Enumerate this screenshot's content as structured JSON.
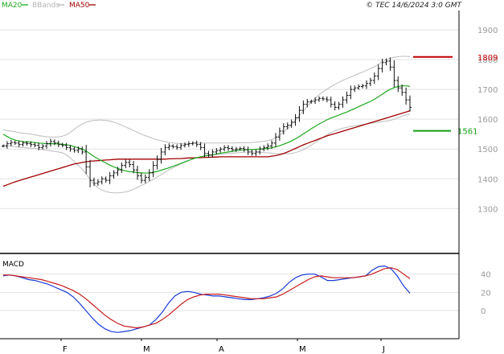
{
  "header": {
    "legend": [
      {
        "label": "MA20",
        "color": "#1fa81f"
      },
      {
        "label": "BBands",
        "color": "#b4b4b4"
      },
      {
        "label": "MA50",
        "color": "#a00000"
      }
    ],
    "copyright": "© TEC 14/6/2024 3:0 GMT"
  },
  "chart_data": [
    {
      "type": "ohlc",
      "title": "",
      "ylim": [
        1155,
        1965
      ],
      "y_ticks": [
        "1900",
        "1800",
        "1700",
        "1600",
        "1500",
        "1400",
        "1300"
      ],
      "x_month_labels": [
        "F",
        "M",
        "A",
        "M",
        "J"
      ],
      "levels": [
        {
          "label": "1809",
          "value": 1809,
          "color": "#c00000"
        },
        {
          "label": "1561",
          "value": 1561,
          "color": "#12a012"
        }
      ],
      "grid": true,
      "series": [
        {
          "name": "MA20",
          "color": "#1fa81f"
        },
        {
          "name": "BBands",
          "color": "#b4b4b4"
        },
        {
          "name": "MA50",
          "color": "#a00000"
        }
      ],
      "price_close": [
        1510,
        1518,
        1522,
        1520,
        1515,
        1520,
        1518,
        1515,
        1512,
        1505,
        1510,
        1518,
        1525,
        1520,
        1515,
        1512,
        1505,
        1500,
        1495,
        1500,
        1490,
        1440,
        1395,
        1385,
        1390,
        1400,
        1395,
        1410,
        1420,
        1430,
        1445,
        1455,
        1448,
        1430,
        1410,
        1395,
        1405,
        1420,
        1445,
        1465,
        1490,
        1505,
        1510,
        1508,
        1505,
        1512,
        1515,
        1518,
        1520,
        1515,
        1505,
        1485,
        1480,
        1490,
        1495,
        1500,
        1505,
        1502,
        1498,
        1500,
        1502,
        1498,
        1490,
        1485,
        1490,
        1500,
        1505,
        1510,
        1520,
        1540,
        1560,
        1575,
        1580,
        1590,
        1605,
        1630,
        1650,
        1658,
        1660,
        1665,
        1670,
        1668,
        1665,
        1650,
        1640,
        1650,
        1665,
        1680,
        1700,
        1705,
        1710,
        1712,
        1720,
        1730,
        1745,
        1770,
        1790,
        1795,
        1775,
        1730,
        1705,
        1690,
        1665,
        1640
      ],
      "ma20": [
        1550,
        1542,
        1535,
        1530,
        1527,
        1525,
        1524,
        1523,
        1522,
        1520,
        1519,
        1518,
        1518,
        1518,
        1517,
        1516,
        1514,
        1512,
        1508,
        1504,
        1500,
        1493,
        1484,
        1475,
        1467,
        1460,
        1453,
        1446,
        1440,
        1435,
        1430,
        1426,
        1424,
        1423,
        1421,
        1420,
        1419,
        1420,
        1422,
        1425,
        1429,
        1433,
        1437,
        1442,
        1447,
        1452,
        1457,
        1462,
        1467,
        1471,
        1474,
        1477,
        1479,
        1481,
        1483,
        1486,
        1488,
        1490,
        1492,
        1494,
        1496,
        1497,
        1498,
        1498,
        1499,
        1500,
        1501,
        1502,
        1504,
        1507,
        1511,
        1516,
        1521,
        1527,
        1534,
        1542,
        1551,
        1559,
        1568,
        1576,
        1584,
        1591,
        1598,
        1604,
        1609,
        1614,
        1619,
        1624,
        1630,
        1636,
        1642,
        1648,
        1654,
        1660,
        1667,
        1675,
        1684,
        1693,
        1700,
        1706,
        1710,
        1712,
        1712,
        1710
      ],
      "bb_upper": [
        1565,
        1562,
        1560,
        1558,
        1555,
        1553,
        1552,
        1550,
        1548,
        1545,
        1543,
        1541,
        1540,
        1540,
        1541,
        1543,
        1548,
        1556,
        1566,
        1576,
        1584,
        1590,
        1594,
        1596,
        1597,
        1597,
        1596,
        1594,
        1590,
        1585,
        1580,
        1574,
        1568,
        1562,
        1556,
        1550,
        1545,
        1540,
        1535,
        1531,
        1528,
        1525,
        1522,
        1520,
        1519,
        1518,
        1518,
        1518,
        1519,
        1520,
        1520,
        1520,
        1520,
        1520,
        1520,
        1520,
        1520,
        1520,
        1520,
        1520,
        1521,
        1521,
        1521,
        1522,
        1523,
        1524,
        1526,
        1528,
        1532,
        1538,
        1546,
        1556,
        1568,
        1582,
        1597,
        1612,
        1628,
        1643,
        1657,
        1670,
        1682,
        1692,
        1701,
        1709,
        1717,
        1724,
        1730,
        1736,
        1742,
        1747,
        1753,
        1758,
        1764,
        1770,
        1776,
        1784,
        1793,
        1800,
        1805,
        1808,
        1810,
        1811,
        1811,
        1810
      ],
      "bb_lower": [
        1515,
        1512,
        1510,
        1508,
        1506,
        1505,
        1504,
        1503,
        1502,
        1500,
        1498,
        1496,
        1494,
        1492,
        1490,
        1487,
        1480,
        1470,
        1458,
        1445,
        1432,
        1416,
        1398,
        1382,
        1370,
        1362,
        1357,
        1354,
        1353,
        1353,
        1354,
        1356,
        1360,
        1365,
        1371,
        1378,
        1384,
        1391,
        1398,
        1406,
        1414,
        1422,
        1430,
        1437,
        1444,
        1450,
        1456,
        1462,
        1467,
        1471,
        1474,
        1476,
        1478,
        1480,
        1482,
        1483,
        1484,
        1485,
        1486,
        1487,
        1488,
        1489,
        1490,
        1490,
        1490,
        1489,
        1488,
        1487,
        1486,
        1485,
        1484,
        1484,
        1484,
        1485,
        1488,
        1492,
        1498,
        1505,
        1513,
        1522,
        1531,
        1540,
        1548,
        1555,
        1561,
        1566,
        1570,
        1573,
        1576,
        1578,
        1580,
        1582,
        1584,
        1586,
        1588,
        1590,
        1592,
        1594,
        1596,
        1600,
        1605,
        1610,
        1614,
        1617
      ],
      "ma50": [
        1375,
        1380,
        1385,
        1390,
        1394,
        1398,
        1402,
        1406,
        1410,
        1414,
        1418,
        1422,
        1426,
        1430,
        1434,
        1438,
        1442,
        1446,
        1450,
        1452,
        1455,
        1457,
        1459,
        1460,
        1461,
        1462,
        1463,
        1464,
        1465,
        1466,
        1466,
        1466,
        1466,
        1466,
        1466,
        1466,
        1466,
        1466,
        1466,
        1466,
        1466,
        1466,
        1467,
        1467,
        1468,
        1468,
        1469,
        1470,
        1470,
        1471,
        1471,
        1472,
        1472,
        1473,
        1473,
        1474,
        1474,
        1474,
        1474,
        1474,
        1474,
        1474,
        1474,
        1474,
        1474,
        1474,
        1474,
        1474,
        1476,
        1478,
        1481,
        1485,
        1490,
        1496,
        1502,
        1508,
        1514,
        1519,
        1524,
        1529,
        1534,
        1539,
        1544,
        1548,
        1552,
        1556,
        1560,
        1564,
        1568,
        1572,
        1576,
        1580,
        1584,
        1588,
        1592,
        1596,
        1600,
        1604,
        1608,
        1612,
        1616,
        1620,
        1624,
        1628
      ]
    },
    {
      "type": "line",
      "title": "MACD",
      "ylim": [
        -30,
        60
      ],
      "y_ticks": [
        "40",
        "20",
        "0"
      ],
      "series": [
        {
          "name": "",
          "color": "#1a3ad8",
          "values": [
            38,
            39,
            38,
            36,
            34,
            33,
            31,
            29,
            26,
            23,
            20,
            15,
            8,
            0,
            -8,
            -15,
            -20,
            -23,
            -24,
            -23,
            -22,
            -20,
            -18,
            -16,
            -10,
            -2,
            8,
            16,
            20,
            21,
            20,
            18,
            17,
            16,
            16,
            15,
            14,
            13,
            12,
            12,
            13,
            14,
            16,
            19,
            24,
            31,
            36,
            39,
            40,
            40,
            37,
            33,
            33,
            34,
            35,
            36,
            37,
            38,
            44,
            48,
            49,
            46,
            38,
            27,
            19
          ]
        },
        {
          "name": "",
          "color": "#c81c1c",
          "values": [
            39,
            39,
            38,
            37,
            36,
            35,
            34,
            32,
            30,
            28,
            25,
            22,
            18,
            13,
            7,
            1,
            -5,
            -10,
            -14,
            -17,
            -18,
            -19,
            -18,
            -16,
            -14,
            -10,
            -5,
            1,
            7,
            12,
            15,
            17,
            18,
            18,
            18,
            17,
            16,
            15,
            14,
            13,
            13,
            13,
            14,
            15,
            18,
            22,
            26,
            30,
            34,
            37,
            38,
            37,
            36,
            36,
            36,
            36,
            37,
            38,
            40,
            43,
            46,
            47,
            45,
            40,
            35
          ]
        }
      ]
    }
  ]
}
